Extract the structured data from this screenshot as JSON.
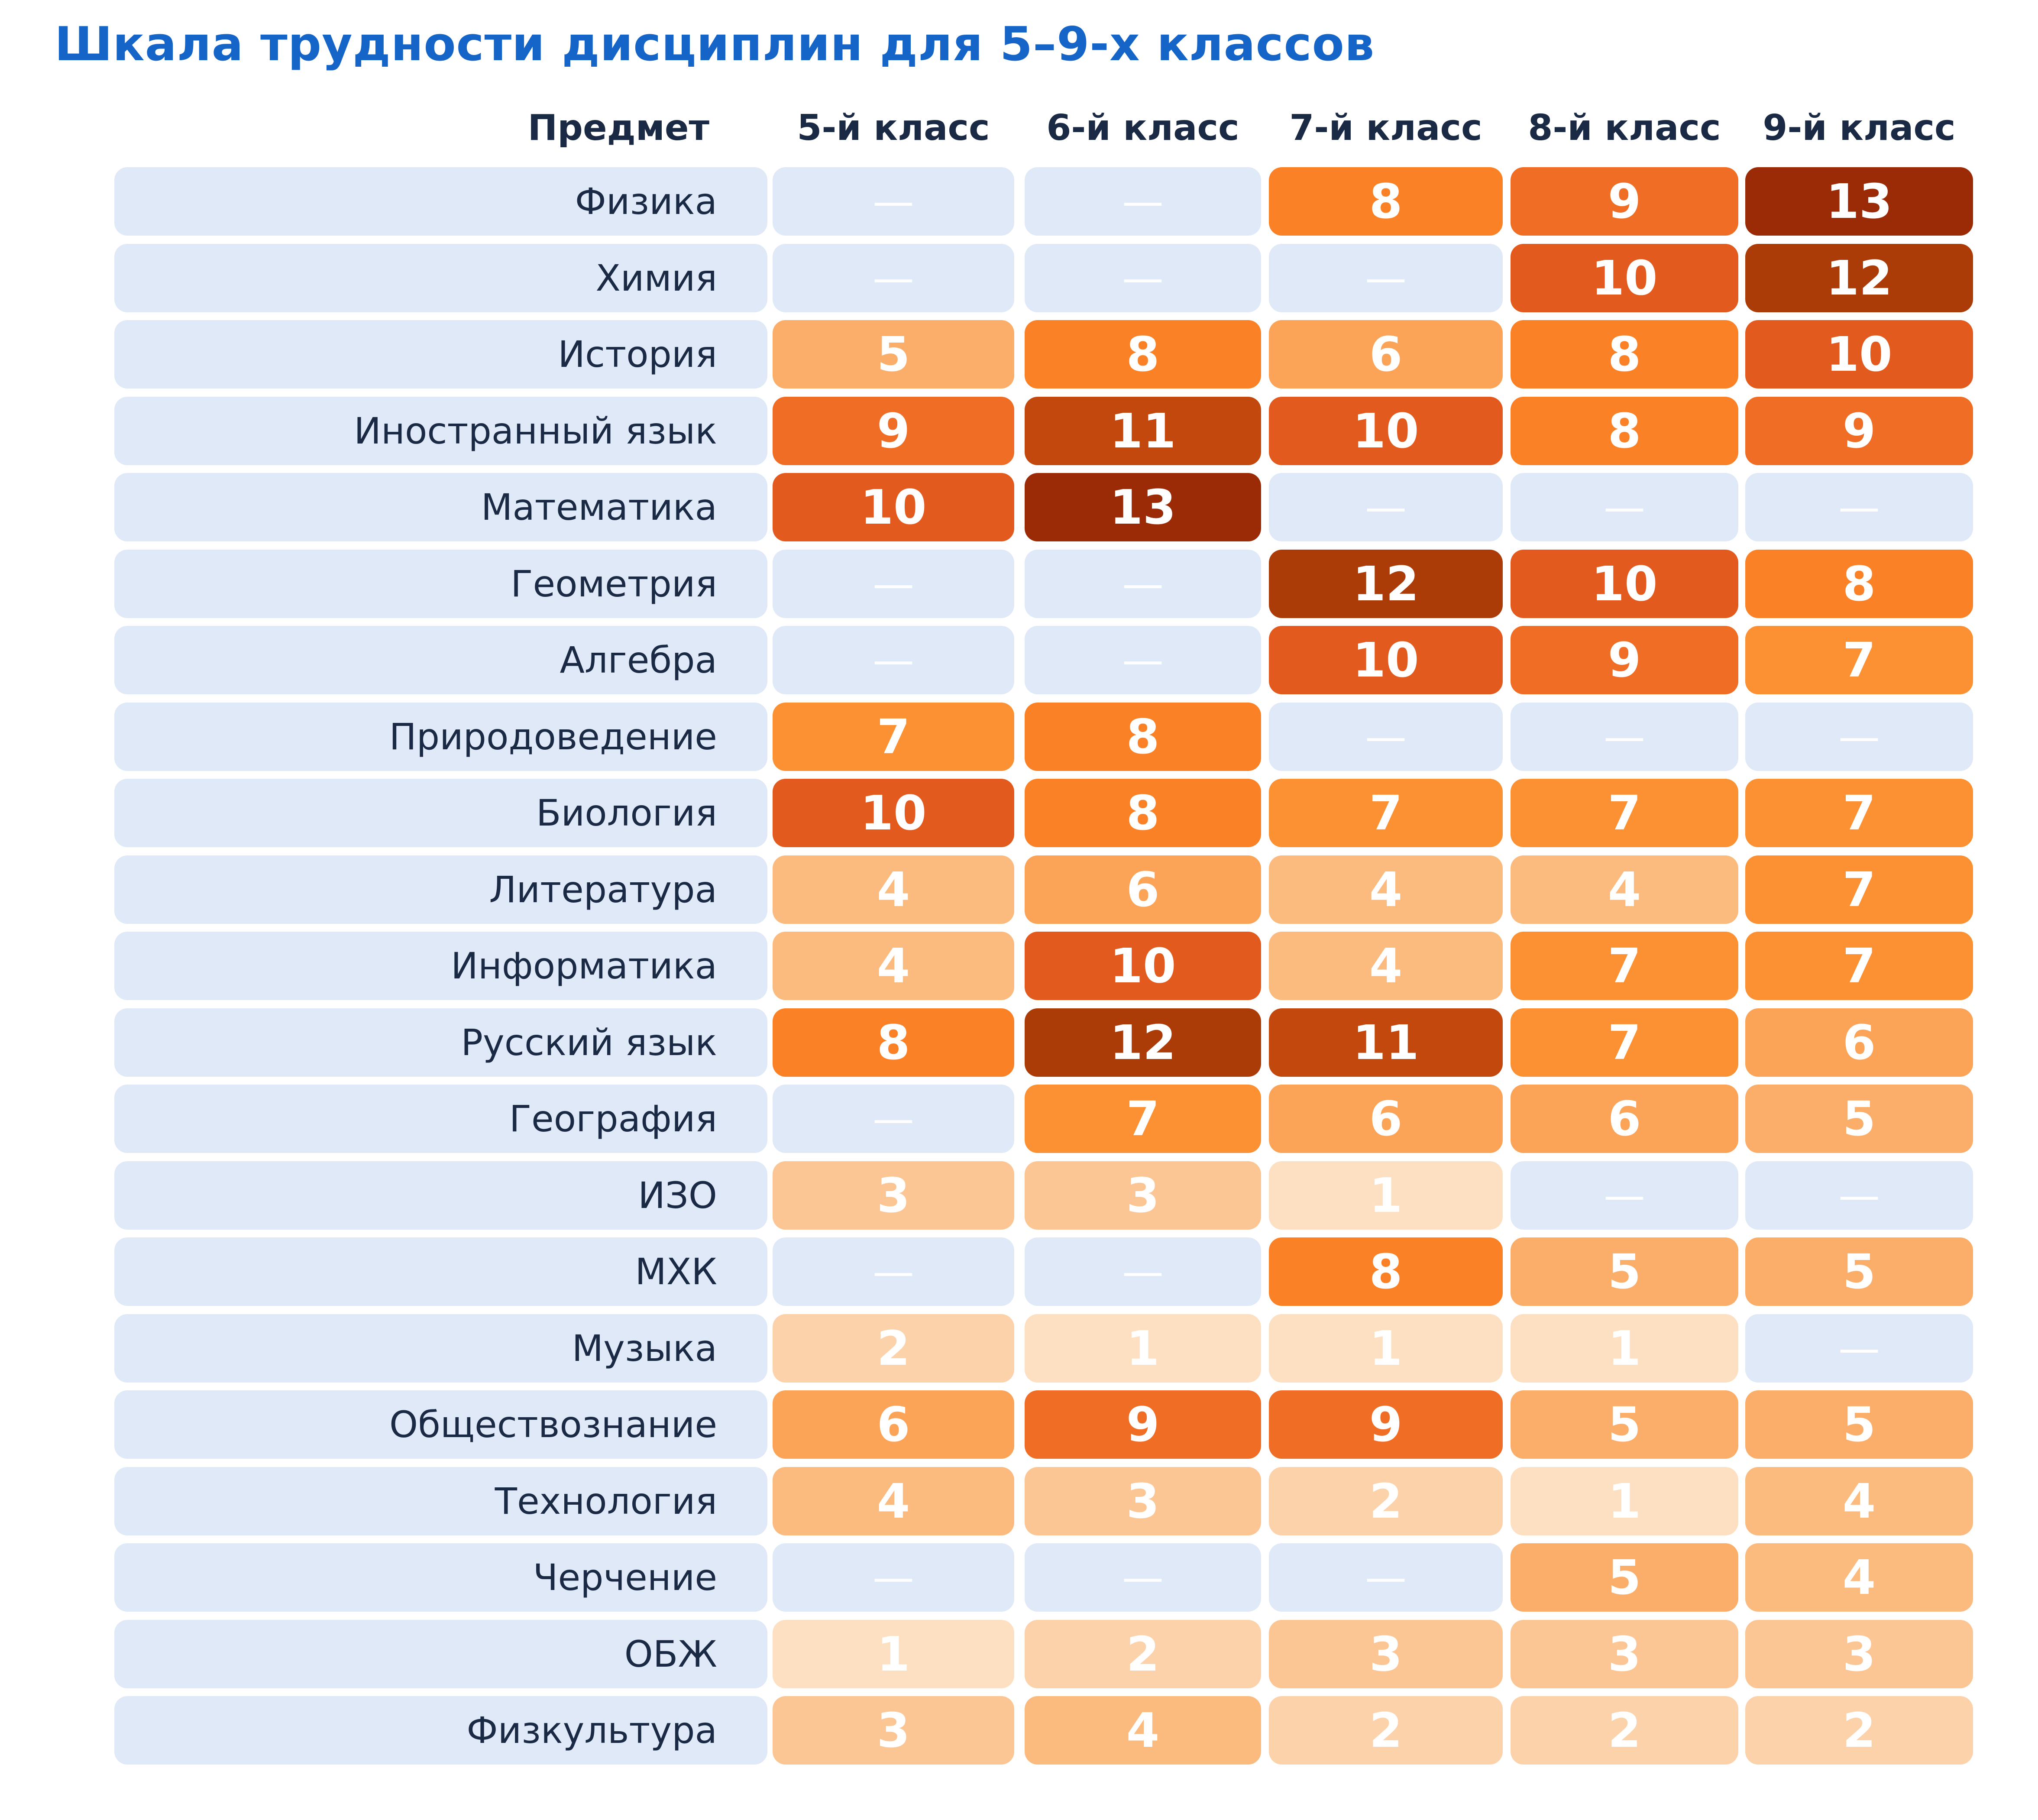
{
  "chart_data": {
    "type": "table",
    "title": "Шкала трудности дисциплин для 5–9-х классов",
    "header_subject": "Предмет",
    "columns": [
      "5-й класс",
      "6-й класс",
      "7-й класс",
      "8-й класс",
      "9-й класс"
    ],
    "empty_symbol": "—",
    "rows": [
      {
        "subject": "Физика",
        "values": [
          null,
          null,
          8,
          9,
          13
        ]
      },
      {
        "subject": "Химия",
        "values": [
          null,
          null,
          null,
          10,
          12
        ]
      },
      {
        "subject": "История",
        "values": [
          5,
          8,
          6,
          8,
          10
        ]
      },
      {
        "subject": "Иностранный язык",
        "values": [
          9,
          11,
          10,
          8,
          9
        ]
      },
      {
        "subject": "Математика",
        "values": [
          10,
          13,
          null,
          null,
          null
        ]
      },
      {
        "subject": "Геометрия",
        "values": [
          null,
          null,
          12,
          10,
          8
        ]
      },
      {
        "subject": "Алгебра",
        "values": [
          null,
          null,
          10,
          9,
          7
        ]
      },
      {
        "subject": "Природоведение",
        "values": [
          7,
          8,
          null,
          null,
          null
        ]
      },
      {
        "subject": "Биология",
        "values": [
          10,
          8,
          7,
          7,
          7
        ]
      },
      {
        "subject": "Литература",
        "values": [
          4,
          6,
          4,
          4,
          7
        ]
      },
      {
        "subject": "Информатика",
        "values": [
          4,
          10,
          4,
          7,
          7
        ]
      },
      {
        "subject": "Русский язык",
        "values": [
          8,
          12,
          11,
          7,
          6
        ]
      },
      {
        "subject": "География",
        "values": [
          null,
          7,
          6,
          6,
          5
        ]
      },
      {
        "subject": "ИЗО",
        "values": [
          3,
          3,
          1,
          null,
          null
        ]
      },
      {
        "subject": "МХК",
        "values": [
          null,
          null,
          8,
          5,
          5
        ]
      },
      {
        "subject": "Музыка",
        "values": [
          2,
          1,
          1,
          1,
          null
        ]
      },
      {
        "subject": "Обществознание",
        "values": [
          6,
          9,
          9,
          5,
          5
        ]
      },
      {
        "subject": "Технология",
        "values": [
          4,
          3,
          2,
          1,
          4
        ]
      },
      {
        "subject": "Черчение",
        "values": [
          null,
          null,
          null,
          5,
          4
        ]
      },
      {
        "subject": "ОБЖ",
        "values": [
          1,
          2,
          3,
          3,
          3
        ]
      },
      {
        "subject": "Физкультура",
        "values": [
          3,
          4,
          2,
          2,
          2
        ]
      }
    ],
    "color_scale": {
      "empty": "#dfe9f7",
      "1": "#fde0c2",
      "2": "#fcd2aa",
      "3": "#fcc594",
      "4": "#fbba7e",
      "5": "#fbad6a",
      "6": "#fba458",
      "7": "#fb9133",
      "8": "#fb8126",
      "9": "#ef6d24",
      "10": "#e35a1f",
      "11": "#c2480e",
      "12": "#ab3b07",
      "13": "#9a2b06"
    }
  }
}
